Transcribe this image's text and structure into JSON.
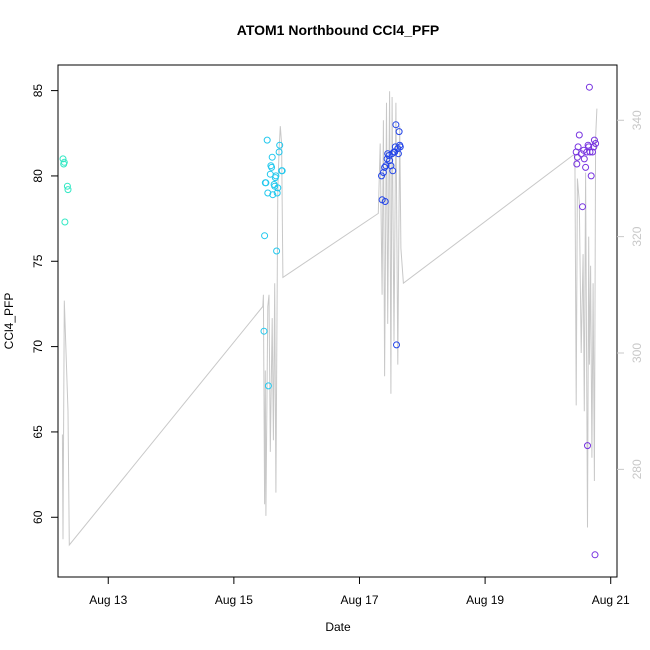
{
  "chart_data": {
    "type": "scatter",
    "title": "ATOM1 Northbound CCl4_PFP",
    "xlabel": "Date",
    "ylabel": "CCl4_PFP",
    "xlim": [
      12.2,
      21.1
    ],
    "ylim": [
      56.5,
      86.5
    ],
    "x_ticks": [
      13,
      15,
      17,
      19,
      21
    ],
    "x_tick_labels": [
      "Aug 13",
      "Aug 15",
      "Aug 17",
      "Aug 19",
      "Aug 21"
    ],
    "y_ticks": [
      60,
      65,
      70,
      75,
      80,
      85
    ],
    "y_tick_labels": [
      "60",
      "65",
      "70",
      "75",
      "80",
      "85"
    ],
    "y2lim": [
      261.5,
      349.5
    ],
    "y2_ticks": [
      280,
      300,
      320,
      340
    ],
    "y2_tick_labels": [
      "280",
      "300",
      "320",
      "340"
    ],
    "grid": false,
    "colors": {
      "line": "#c8c8c8",
      "axis": "#000000",
      "axis_right": "#c8c8c8"
    },
    "series": [
      {
        "color": "#33e8c4",
        "points": [
          [
            12.28,
            81.0
          ],
          [
            12.29,
            80.7
          ],
          [
            12.3,
            80.8
          ],
          [
            12.31,
            77.3
          ],
          [
            12.35,
            79.4
          ],
          [
            12.36,
            79.2
          ]
        ]
      },
      {
        "color": "#22c8ee",
        "points": [
          [
            15.48,
            70.9
          ],
          [
            15.49,
            76.5
          ],
          [
            15.5,
            79.6
          ],
          [
            15.51,
            79.6
          ],
          [
            15.53,
            82.1
          ],
          [
            15.54,
            79.0
          ],
          [
            15.55,
            67.7
          ],
          [
            15.58,
            80.1
          ],
          [
            15.59,
            80.6
          ],
          [
            15.6,
            80.5
          ],
          [
            15.61,
            81.1
          ],
          [
            15.62,
            78.9
          ],
          [
            15.64,
            79.5
          ],
          [
            15.65,
            79.4
          ],
          [
            15.66,
            79.9
          ],
          [
            15.67,
            80.0
          ],
          [
            15.68,
            75.6
          ],
          [
            15.69,
            79.0
          ],
          [
            15.7,
            79.3
          ],
          [
            15.72,
            81.4
          ],
          [
            15.73,
            81.8
          ],
          [
            15.76,
            80.3
          ],
          [
            15.77,
            80.3
          ]
        ]
      },
      {
        "color": "#2244e8",
        "points": [
          [
            17.35,
            80.0
          ],
          [
            17.36,
            78.6
          ],
          [
            17.38,
            80.2
          ],
          [
            17.4,
            80.5
          ],
          [
            17.41,
            78.5
          ],
          [
            17.42,
            80.6
          ],
          [
            17.44,
            81.0
          ],
          [
            17.45,
            81.3
          ],
          [
            17.47,
            81.2
          ],
          [
            17.48,
            80.9
          ],
          [
            17.5,
            80.6
          ],
          [
            17.52,
            81.3
          ],
          [
            17.53,
            80.3
          ],
          [
            17.55,
            81.4
          ],
          [
            17.56,
            81.4
          ],
          [
            17.57,
            81.7
          ],
          [
            17.58,
            83.0
          ],
          [
            17.59,
            70.1
          ],
          [
            17.61,
            81.6
          ],
          [
            17.62,
            81.3
          ],
          [
            17.63,
            82.6
          ],
          [
            17.64,
            81.8
          ],
          [
            17.65,
            81.7
          ]
        ]
      },
      {
        "color": "#7733e0",
        "points": [
          [
            20.45,
            81.4
          ],
          [
            20.46,
            80.7
          ],
          [
            20.47,
            81.1
          ],
          [
            20.48,
            81.7
          ],
          [
            20.5,
            82.4
          ],
          [
            20.53,
            81.3
          ],
          [
            20.55,
            78.2
          ],
          [
            20.57,
            81.5
          ],
          [
            20.58,
            81.0
          ],
          [
            20.6,
            80.5
          ],
          [
            20.62,
            81.4
          ],
          [
            20.63,
            64.2
          ],
          [
            20.64,
            81.8
          ],
          [
            20.65,
            81.7
          ],
          [
            20.66,
            85.2
          ],
          [
            20.67,
            81.4
          ],
          [
            20.69,
            80.0
          ],
          [
            20.71,
            81.4
          ],
          [
            20.73,
            81.7
          ],
          [
            20.74,
            82.1
          ],
          [
            20.75,
            57.8
          ],
          [
            20.76,
            81.9
          ]
        ]
      }
    ],
    "line_series": {
      "axis": "right",
      "color": "#c8c8c8",
      "points": [
        [
          12.27,
          286
        ],
        [
          12.28,
          268
        ],
        [
          12.3,
          309
        ],
        [
          12.36,
          290
        ],
        [
          12.38,
          267
        ],
        [
          15.46,
          308
        ],
        [
          15.47,
          310
        ],
        [
          15.49,
          274
        ],
        [
          15.5,
          297
        ],
        [
          15.51,
          272
        ],
        [
          15.54,
          308
        ],
        [
          15.56,
          310
        ],
        [
          15.58,
          283
        ],
        [
          15.61,
          306
        ],
        [
          15.63,
          285
        ],
        [
          15.65,
          312
        ],
        [
          15.67,
          276
        ],
        [
          15.7,
          328
        ],
        [
          15.72,
          335
        ],
        [
          15.74,
          339
        ],
        [
          15.76,
          336
        ],
        [
          15.78,
          313
        ],
        [
          17.3,
          324
        ],
        [
          17.33,
          336
        ],
        [
          17.36,
          310
        ],
        [
          17.38,
          340
        ],
        [
          17.4,
          296
        ],
        [
          17.43,
          343
        ],
        [
          17.45,
          305
        ],
        [
          17.48,
          345
        ],
        [
          17.5,
          293
        ],
        [
          17.52,
          344
        ],
        [
          17.55,
          302
        ],
        [
          17.58,
          343
        ],
        [
          17.61,
          298
        ],
        [
          17.64,
          339
        ],
        [
          17.66,
          318
        ],
        [
          17.7,
          312
        ],
        [
          20.4,
          334
        ],
        [
          20.43,
          334
        ],
        [
          20.45,
          291
        ],
        [
          20.47,
          330
        ],
        [
          20.5,
          326
        ],
        [
          20.53,
          300
        ],
        [
          20.56,
          317
        ],
        [
          20.58,
          290
        ],
        [
          20.6,
          331
        ],
        [
          20.63,
          270
        ],
        [
          20.65,
          320
        ],
        [
          20.66,
          298
        ],
        [
          20.68,
          315
        ],
        [
          20.7,
          282
        ],
        [
          20.72,
          312
        ],
        [
          20.74,
          278
        ],
        [
          20.76,
          337
        ],
        [
          20.78,
          342
        ]
      ]
    }
  }
}
